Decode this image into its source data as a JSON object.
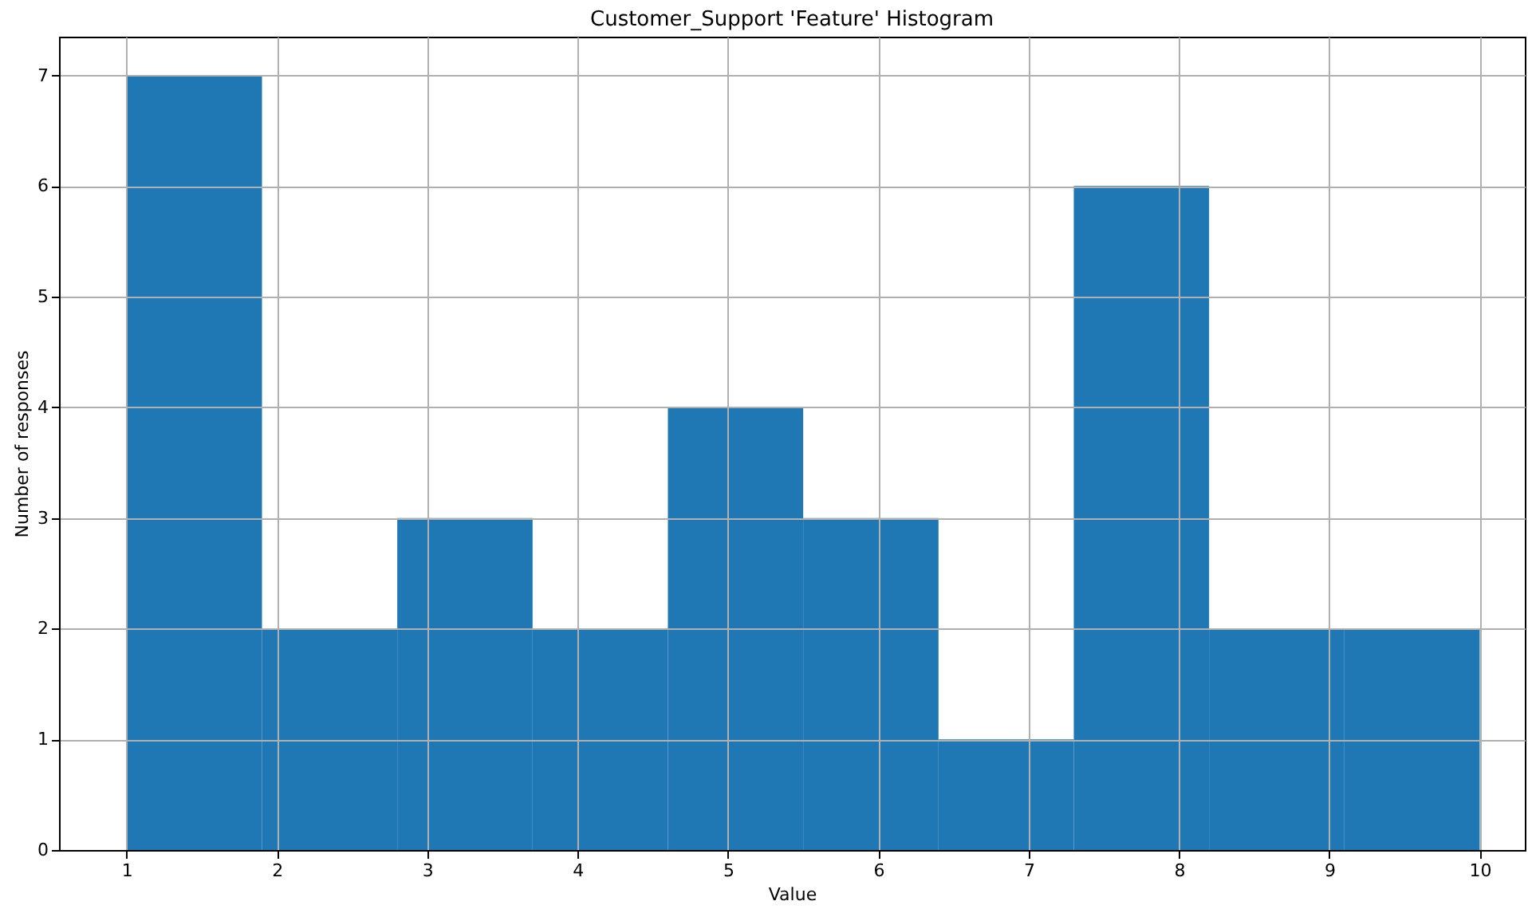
{
  "chart_data": {
    "type": "histogram",
    "title": "Customer_Support 'Feature' Histogram",
    "xlabel": "Value",
    "ylabel": "Number of responses",
    "bins": [
      1,
      1.9,
      2.8,
      3.7,
      4.6,
      5.5,
      6.4,
      7.3,
      8.2,
      9.1,
      10
    ],
    "values": [
      7,
      2,
      3,
      2,
      4,
      3,
      1,
      6,
      2,
      2
    ],
    "color": "#1f77b4",
    "xlim": [
      0.55,
      10.3
    ],
    "xticks": [
      1,
      2,
      3,
      4,
      5,
      6,
      7,
      8,
      9,
      10
    ],
    "ylim": [
      0,
      7.35
    ],
    "yticks": [
      0,
      1,
      2,
      3,
      4,
      5,
      6,
      7
    ],
    "grid": true
  }
}
